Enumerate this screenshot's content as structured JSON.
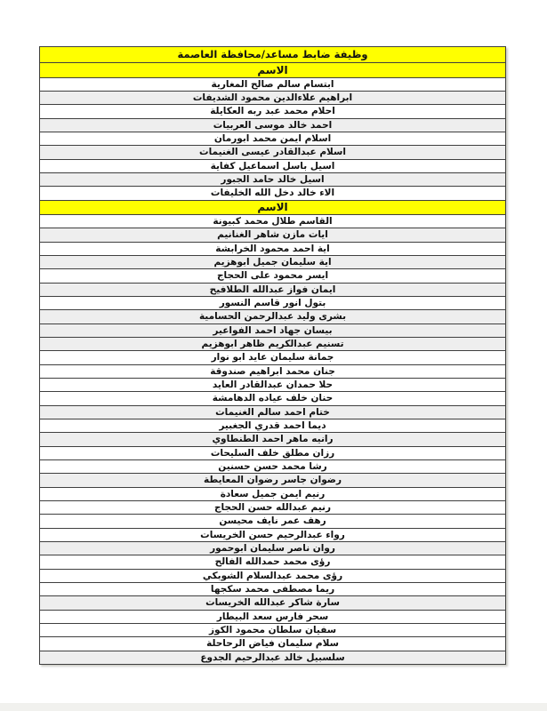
{
  "document": {
    "title": "وظيفة ضابط مساعد/محافظة العاصمة",
    "colors": {
      "header_bg": "#ffff00",
      "shaded_row_bg": "#eeeeee",
      "border": "#3f3f3f",
      "text": "#111111"
    },
    "sections": [
      {
        "header": "الاسم",
        "rows": [
          {
            "name": "ابتسام سالم صالح المغارية",
            "shaded": false
          },
          {
            "name": "ابراهيم علاءالدين محمود الشديفات",
            "shaded": true
          },
          {
            "name": "احلام محمد عبد ربه العكايلة",
            "shaded": false
          },
          {
            "name": "احمد خالد موسى العربيات",
            "shaded": true
          },
          {
            "name": "اسلام ايمن محمد ابورمان",
            "shaded": false
          },
          {
            "name": "اسلام عبدالقادر عيسى الغنيمات",
            "shaded": true
          },
          {
            "name": "اسيل باسل اسماعيل كفاية",
            "shaded": false
          },
          {
            "name": "اسيل خالد حامد الجبور",
            "shaded": true
          },
          {
            "name": "الاء خالد دخل الله الخليفات",
            "shaded": false
          }
        ]
      },
      {
        "header": "الاسم",
        "rows": [
          {
            "name": "القاسم طلال محمد كبيونة",
            "shaded": false
          },
          {
            "name": "ايات مازن شاهر الغنانيم",
            "shaded": true
          },
          {
            "name": "اية احمد محمود الخرابشة",
            "shaded": false
          },
          {
            "name": "اية سليمان جميل ابوهزيم",
            "shaded": true
          },
          {
            "name": "ايسر محمود على الحجاج",
            "shaded": false
          },
          {
            "name": "ايمان فواز عبدالله الطلافيح",
            "shaded": true
          },
          {
            "name": "بتول انور قاسم النسور",
            "shaded": false
          },
          {
            "name": "بشرى وليد عبدالرحمن الحسامية",
            "shaded": true
          },
          {
            "name": "بيسان جهاد احمد الفواعير",
            "shaded": true
          },
          {
            "name": "تسنيم عبدالكريم ظاهر ابوهزيم",
            "shaded": true
          },
          {
            "name": "جمانة سليمان عايد ابو نوار",
            "shaded": false
          },
          {
            "name": "جنان محمد ابراهيم صندوقة",
            "shaded": false
          },
          {
            "name": "حلا حمدان عبدالقادر العايد",
            "shaded": false
          },
          {
            "name": "حنان خلف عياده الدهامشة",
            "shaded": false
          },
          {
            "name": "ختام احمد سالم الغنيمات",
            "shaded": true
          },
          {
            "name": "ديما احمد قدري الجغبير",
            "shaded": false
          },
          {
            "name": "رانيه ماهر احمد الطنطاوي",
            "shaded": true
          },
          {
            "name": "رزان مطلق خلف السليحات",
            "shaded": false
          },
          {
            "name": "رشا محمد حسن حسنين",
            "shaded": false
          },
          {
            "name": "رضوان جاسر رضوان المعايطة",
            "shaded": true
          },
          {
            "name": "رنيم ايمن جميل سعادة",
            "shaded": false
          },
          {
            "name": "رنيم عبدالله حسن الحجاج",
            "shaded": false
          },
          {
            "name": "رهف عمر نايف محيسن",
            "shaded": false
          },
          {
            "name": "رواء عبدالرحيم حسن الخريسات",
            "shaded": false
          },
          {
            "name": "روان ناصر سليمان ابوحمور",
            "shaded": true
          },
          {
            "name": "رؤى محمد حمدالله الفالح",
            "shaded": false
          },
          {
            "name": "رؤى محمد عبدالسلام الشوبكي",
            "shaded": false
          },
          {
            "name": "ريما مصطفى محمد سكجها",
            "shaded": false
          },
          {
            "name": "سارة شاكر عبدالله الخريسات",
            "shaded": true
          },
          {
            "name": "سحر فارس سعد البيطار",
            "shaded": false
          },
          {
            "name": "سفيان سلطان محمود الكوز",
            "shaded": false
          },
          {
            "name": "سلام سليمان فياض الرحاحلة",
            "shaded": false
          },
          {
            "name": "سلسبيل خالد عبدالرحيم الجدوع",
            "shaded": true
          }
        ]
      }
    ]
  }
}
